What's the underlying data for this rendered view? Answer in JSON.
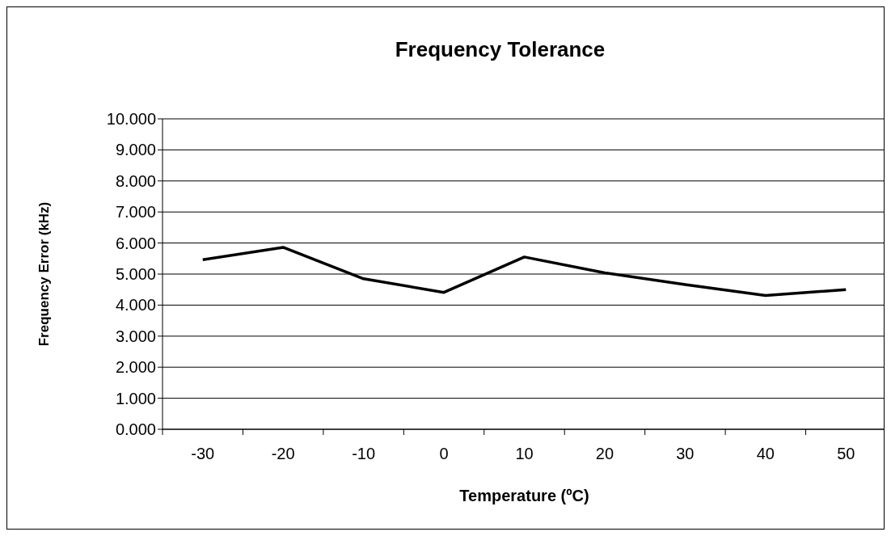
{
  "chart_data": {
    "type": "line",
    "title": "Frequency Tolerance",
    "xlabel": "Temperature (ºC)",
    "ylabel": "Frequency Error (kHz)",
    "categories": [
      "-30",
      "-20",
      "-10",
      "0",
      "10",
      "20",
      "30",
      "40",
      "50"
    ],
    "series": [
      {
        "color": "#000000",
        "values": [
          5.46,
          5.86,
          4.85,
          4.41,
          5.55,
          5.04,
          4.66,
          4.31,
          4.5
        ]
      }
    ],
    "ylim": [
      0,
      10
    ],
    "yticks": [
      {
        "value": 0,
        "label": "0.000"
      },
      {
        "value": 1,
        "label": "1.000"
      },
      {
        "value": 2,
        "label": "2.000"
      },
      {
        "value": 3,
        "label": "3.000"
      },
      {
        "value": 4,
        "label": "4.000"
      },
      {
        "value": 5,
        "label": "5.000"
      },
      {
        "value": 6,
        "label": "6.000"
      },
      {
        "value": 7,
        "label": "7.000"
      },
      {
        "value": 8,
        "label": "8.000"
      },
      {
        "value": 9,
        "label": "9.000"
      },
      {
        "value": 10,
        "label": "10.000"
      }
    ],
    "grid": "y",
    "marker": "none",
    "line_style": "solid"
  }
}
